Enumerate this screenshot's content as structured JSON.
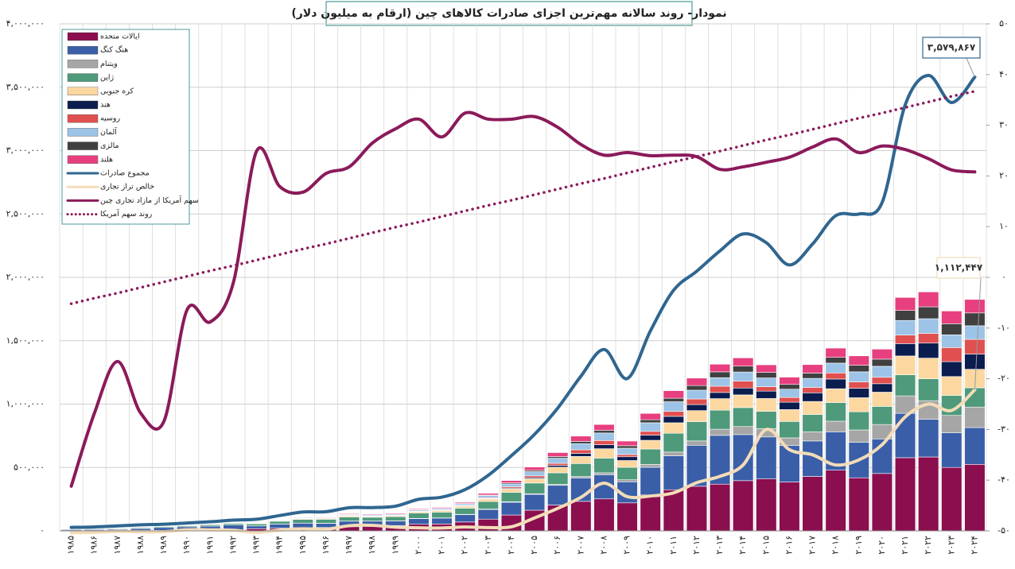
{
  "chart_data": {
    "type": "bar",
    "stacked": true,
    "title": "نمودار- روند سالانه مهم‌ترین اجزای صادرات کالاهای چین (ارقام به میلیون دلار)",
    "categories": [
      "۱۹۸۵",
      "۱۹۸۶",
      "۱۹۸۷",
      "۱۹۸۸",
      "۱۹۸۹",
      "۱۹۹۰",
      "۱۹۹۱",
      "۱۹۹۲",
      "۱۹۹۳",
      "۱۹۹۴",
      "۱۹۹۵",
      "۱۹۹۶",
      "۱۹۹۷",
      "۱۹۹۸",
      "۱۹۹۹",
      "۲۰۰۰",
      "۲۰۰۱",
      "۲۰۰۲",
      "۲۰۰۳",
      "۲۰۰۴",
      "۲۰۰۵",
      "۲۰۰۶",
      "۲۰۰۷",
      "۲۰۰۸",
      "۲۰۰۹",
      "۲۰۱۰",
      "۲۰۱۱",
      "۲۰۱۲",
      "۲۰۱۳",
      "۲۰۱۴",
      "۲۰۱۵",
      "۲۰۱۶",
      "۲۰۱۷",
      "۲۰۱۸",
      "۲۰۱۹",
      "۲۰۲۰",
      "۲۰۲۱",
      "۲۰۲۲",
      "۲۰۲۳",
      "۲۰۲۴"
    ],
    "ylim": [
      0,
      4000000
    ],
    "yticks": [
      {
        "value": 0,
        "label": "۰"
      },
      {
        "value": 500000,
        "label": "۵۰۰,۰۰۰"
      },
      {
        "value": 1000000,
        "label": "۱,۰۰۰,۰۰۰"
      },
      {
        "value": 1500000,
        "label": "۱,۵۰۰,۰۰۰"
      },
      {
        "value": 2000000,
        "label": "۲,۰۰۰,۰۰۰"
      },
      {
        "value": 2500000,
        "label": "۲,۵۰۰,۰۰۰"
      },
      {
        "value": 3000000,
        "label": "۳,۰۰۰,۰۰۰"
      },
      {
        "value": 3500000,
        "label": "۳,۵۰۰,۰۰۰"
      },
      {
        "value": 4000000,
        "label": "۴,۰۰۰,۰۰۰"
      }
    ],
    "y2lim": [
      -50,
      50
    ],
    "y2ticks": [
      {
        "value": -50,
        "label": "-۵۰"
      },
      {
        "value": -40,
        "label": "-۴۰"
      },
      {
        "value": -30,
        "label": "-۳۰"
      },
      {
        "value": -20,
        "label": "-۲۰"
      },
      {
        "value": -10,
        "label": "-۱۰"
      },
      {
        "value": 0,
        "label": "۰"
      },
      {
        "value": 10,
        "label": "۱۰"
      },
      {
        "value": 20,
        "label": "۲۰"
      },
      {
        "value": 30,
        "label": "۳۰"
      },
      {
        "value": 40,
        "label": "۴۰"
      },
      {
        "value": 50,
        "label": "۵۰"
      }
    ],
    "grid": true,
    "legend": "upper left",
    "series": [
      {
        "name": "ایالات متحده",
        "type": "bar",
        "color": "#8b0e4f",
        "values": [
          2300,
          2600,
          3000,
          3400,
          4400,
          5300,
          6200,
          8600,
          17000,
          21500,
          24700,
          26700,
          32700,
          38000,
          41900,
          52100,
          54300,
          69900,
          92500,
          125000,
          163000,
          203500,
          232700,
          252300,
          220800,
          283300,
          324500,
          351800,
          368400,
          396100,
          409500,
          385100,
          429800,
          478400,
          418500,
          452600,
          577100,
          582800,
          500300,
          524700
        ]
      },
      {
        "name": "هنگ کنگ",
        "type": "bar",
        "color": "#3a5fa8",
        "values": [
          7100,
          8000,
          10000,
          14000,
          22000,
          26700,
          32100,
          37500,
          22000,
          32400,
          36000,
          32900,
          43800,
          38700,
          36900,
          44500,
          46500,
          58500,
          76300,
          100900,
          124500,
          155300,
          184400,
          190700,
          166200,
          218300,
          268000,
          323400,
          384800,
          363200,
          331500,
          287500,
          279400,
          303000,
          279600,
          272700,
          350000,
          297500,
          273000,
          290000
        ]
      },
      {
        "name": "ویتنام",
        "type": "bar",
        "color": "#a6a6a6",
        "values": [
          0,
          0,
          0,
          0,
          0,
          0,
          20,
          100,
          300,
          400,
          700,
          800,
          1100,
          1000,
          1000,
          1500,
          1800,
          2100,
          3200,
          4300,
          5600,
          7500,
          11900,
          15100,
          16300,
          23100,
          29100,
          34200,
          48600,
          63700,
          66100,
          61100,
          71600,
          83900,
          98000,
          113800,
          137900,
          147000,
          137600,
          161900
        ]
      },
      {
        "name": "ژاپن",
        "type": "bar",
        "color": "#4e9a7a",
        "values": [
          6100,
          5700,
          6400,
          7300,
          8400,
          9000,
          10300,
          11700,
          15800,
          21500,
          28500,
          30900,
          31800,
          29700,
          32400,
          41700,
          45000,
          48400,
          59400,
          73500,
          84000,
          91600,
          102000,
          116100,
          97900,
          121000,
          148300,
          151600,
          150300,
          149400,
          135700,
          129400,
          137300,
          147100,
          143200,
          142600,
          165800,
          172900,
          157500,
          152000
        ]
      },
      {
        "name": "کره جنوبی",
        "type": "bar",
        "color": "#fcd7a0",
        "values": [
          0,
          0,
          0,
          0,
          0,
          0,
          0,
          2400,
          2900,
          4400,
          6700,
          7500,
          9100,
          6300,
          7800,
          11300,
          12500,
          15500,
          20100,
          27800,
          35100,
          44500,
          56100,
          73900,
          53700,
          68800,
          82900,
          87700,
          91200,
          100300,
          101400,
          93700,
          102800,
          108800,
          111000,
          112500,
          148900,
          162600,
          149000,
          146200
        ]
      },
      {
        "name": "هند",
        "type": "bar",
        "color": "#0b1c4f",
        "values": [
          100,
          100,
          100,
          100,
          200,
          200,
          200,
          300,
          400,
          700,
          800,
          700,
          1900,
          1900,
          1200,
          1600,
          1900,
          2700,
          3300,
          5900,
          8900,
          14600,
          24000,
          31600,
          29700,
          40900,
          50500,
          47700,
          48400,
          54200,
          58200,
          58400,
          68100,
          76700,
          74800,
          66700,
          97500,
          118500,
          117700,
          120500
        ]
      },
      {
        "name": "روسیه",
        "type": "bar",
        "color": "#e05050",
        "values": [
          1000,
          1200,
          1200,
          1500,
          1800,
          1600,
          1800,
          2300,
          2700,
          1600,
          1700,
          1700,
          2000,
          1800,
          1500,
          2200,
          2700,
          3500,
          6000,
          9100,
          13200,
          15800,
          28500,
          33000,
          17500,
          29600,
          38900,
          44100,
          49600,
          53700,
          34800,
          37300,
          42900,
          47900,
          49700,
          50600,
          67600,
          76100,
          111000,
          115500
        ]
      },
      {
        "name": "آلمان",
        "type": "bar",
        "color": "#9dc3e6",
        "values": [
          900,
          1000,
          1200,
          1400,
          1600,
          2000,
          2400,
          2500,
          3500,
          4800,
          5700,
          5800,
          6500,
          7400,
          7800,
          9300,
          9800,
          11400,
          17400,
          23800,
          32500,
          40300,
          48700,
          59200,
          49900,
          68000,
          76400,
          69200,
          67300,
          72700,
          69200,
          65200,
          71100,
          77500,
          79800,
          86800,
          115200,
          116200,
          100700,
          107200
        ]
      },
      {
        "name": "مالزی",
        "type": "bar",
        "color": "#404040",
        "values": [
          200,
          200,
          300,
          400,
          400,
          300,
          500,
          600,
          700,
          1100,
          1300,
          1400,
          1900,
          1600,
          1700,
          2600,
          3200,
          3700,
          4400,
          8100,
          10600,
          13500,
          17700,
          21400,
          19600,
          23800,
          27900,
          36500,
          45900,
          46400,
          44000,
          37700,
          41700,
          45400,
          52100,
          56400,
          78700,
          93700,
          87400,
          101200
        ]
      },
      {
        "name": "هلند",
        "type": "bar",
        "color": "#e73f7f",
        "values": [
          200,
          300,
          400,
          500,
          600,
          600,
          800,
          1000,
          1500,
          2600,
          3200,
          4100,
          5600,
          6000,
          6600,
          6700,
          7300,
          9100,
          13500,
          18500,
          25900,
          30900,
          41400,
          45900,
          36700,
          49700,
          59500,
          58900,
          60300,
          64900,
          59500,
          57500,
          67100,
          72900,
          73900,
          79000,
          102600,
          117700,
          100400,
          106600
        ]
      },
      {
        "name": "مجموع صادرات",
        "type": "line",
        "color": "#2f6690",
        "values": [
          27350,
          30940,
          39440,
          47520,
          52540,
          62090,
          71840,
          84940,
          91740,
          121006,
          148780,
          151050,
          182790,
          183710,
          194930,
          249200,
          266100,
          325600,
          438228,
          593326,
          761953,
          968978,
          1220456,
          1430693,
          1201612,
          1577754,
          1898381,
          2048714,
          2209004,
          2342293,
          2273468,
          2097637,
          2263371,
          2486695,
          2499457,
          2590646,
          3362302,
          3593601,
          3379263,
          3579867
        ]
      },
      {
        "name": "خالص تراز تجاری",
        "type": "line",
        "color": "#f3dcb8",
        "values": [
          -14900,
          -12000,
          -3800,
          -7800,
          -6600,
          8700,
          8100,
          4400,
          -12200,
          5400,
          16700,
          12200,
          40400,
          43500,
          29200,
          24100,
          22500,
          30400,
          25500,
          32100,
          102000,
          177500,
          264300,
          376000,
          270000,
          275000,
          300000,
          380000,
          430000,
          520000,
          800000,
          640000,
          600000,
          520000,
          560000,
          680000,
          900000,
          1000000,
          950000,
          1112447
        ]
      },
      {
        "name": "سهم آمریکا از مازاد تجاری چین",
        "type": "line",
        "axis": "y2",
        "color": "#8b1a5a",
        "values": [
          -41.2,
          -26.8,
          -16.6,
          -26.8,
          -28.4,
          -6.4,
          -8.8,
          -1,
          24.9,
          17.9,
          16.8,
          20.5,
          21.8,
          26.5,
          29.3,
          31.2,
          27.7,
          32.4,
          31.2,
          31.2,
          31.7,
          29.6,
          26.2,
          24.1,
          24.6,
          24,
          24.1,
          23.8,
          21.3,
          21.8,
          22.7,
          23.7,
          25.7,
          27.3,
          24.6,
          25.9,
          25.2,
          23.4,
          21.2,
          20.8
        ]
      },
      {
        "name": "روند سهم آمریکا",
        "type": "line",
        "axis": "y2",
        "style": "dotted",
        "color": "#8b1a5a",
        "values": [
          -5.2,
          -4.1,
          -3.1,
          -2.0,
          -0.9,
          0.2,
          1.3,
          2.3,
          3.4,
          4.5,
          5.6,
          6.6,
          7.7,
          8.8,
          9.9,
          10.9,
          12.0,
          13.1,
          14.2,
          15.2,
          16.3,
          17.4,
          18.5,
          19.5,
          20.6,
          21.7,
          22.8,
          23.8,
          24.9,
          26.0,
          27.1,
          28.1,
          29.2,
          30.3,
          31.4,
          32.4,
          33.5,
          34.6,
          35.7,
          36.7
        ]
      }
    ],
    "annotations": [
      "۳,۵۷۹,۸۶۷",
      "۱,۱۱۲,۴۴۷"
    ]
  }
}
